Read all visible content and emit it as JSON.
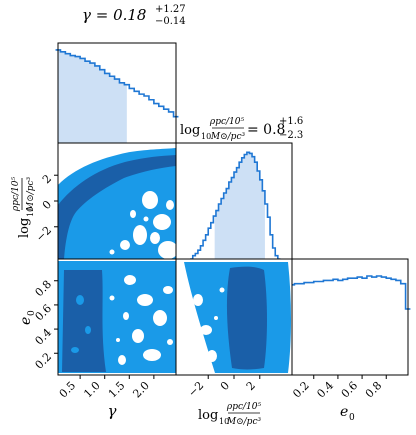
{
  "chart_data": {
    "type": "corner",
    "parameters": [
      {
        "symbol": "γ",
        "title_prefix": "γ = ",
        "value": "0.18",
        "plus": "+1.27",
        "minus": "−0.14",
        "range": [
          0.05,
          2.45
        ],
        "ticks": [
          "0.5",
          "1.0",
          "1.5",
          "2.0"
        ],
        "tick_values": [
          0.5,
          1.0,
          1.5,
          2.0
        ]
      },
      {
        "symbol": "log₁₀ (ρpc/10⁵ / M⊙/pc³)",
        "title_prefix": "log₁₀ (ρpc/10⁵ / M⊙/pc³) = ",
        "value": "0.8",
        "plus": "+1.6",
        "minus": "−2.3",
        "range": [
          -4.5,
          4.5
        ],
        "ticks": [
          "−2",
          "0",
          "2"
        ],
        "tick_values": [
          -2,
          0,
          2
        ]
      },
      {
        "symbol": "e₀",
        "range": [
          0.02,
          0.98
        ],
        "ticks": [
          "0.2",
          "0.4",
          "0.6",
          "0.8"
        ],
        "tick_values": [
          0.2,
          0.4,
          0.6,
          0.8
        ]
      }
    ],
    "axis_labels": {
      "gamma": "γ",
      "log_prefix": "log",
      "log_base": "10",
      "frac_num": "ρpc/10⁵",
      "frac_den": "M⊙/pc³",
      "e0": "e",
      "e0_sub": "0"
    },
    "titles": {
      "gamma": {
        "lhs": "γ = 0.18",
        "sup": "+1.27",
        "sub": "−0.14"
      },
      "rho": {
        "lhs": "= 0.8",
        "sup": "+1.6",
        "sub": "−2.3"
      }
    },
    "marginals": {
      "gamma": {
        "x": [
          0.05,
          0.15,
          0.25,
          0.35,
          0.45,
          0.55,
          0.65,
          0.75,
          0.85,
          0.95,
          1.05,
          1.15,
          1.25,
          1.35,
          1.45,
          1.55,
          1.65,
          1.75,
          1.85,
          1.95,
          2.05,
          2.15,
          2.25,
          2.35,
          2.45
        ],
        "density": [
          0.99,
          0.97,
          0.95,
          0.93,
          0.92,
          0.9,
          0.87,
          0.85,
          0.82,
          0.78,
          0.74,
          0.71,
          0.68,
          0.64,
          0.62,
          0.58,
          0.55,
          0.52,
          0.5,
          0.46,
          0.42,
          0.39,
          0.36,
          0.33,
          0.28
        ],
        "shade": [
          0.05,
          1.45
        ]
      },
      "rho": {
        "x": [
          -3.3,
          -3.1,
          -2.9,
          -2.7,
          -2.5,
          -2.3,
          -2.1,
          -1.9,
          -1.7,
          -1.5,
          -1.3,
          -1.1,
          -0.9,
          -0.7,
          -0.5,
          -0.3,
          -0.1,
          0.1,
          0.3,
          0.5,
          0.7,
          0.9,
          1.1,
          1.3,
          1.5,
          1.7,
          1.9,
          2.1,
          2.3,
          2.5,
          2.7,
          2.9,
          3.1,
          3.3,
          3.5
        ],
        "density": [
          0.0,
          0.03,
          0.05,
          0.08,
          0.12,
          0.17,
          0.22,
          0.28,
          0.33,
          0.39,
          0.44,
          0.5,
          0.55,
          0.6,
          0.64,
          0.7,
          0.74,
          0.79,
          0.83,
          0.88,
          0.92,
          0.95,
          0.97,
          0.96,
          0.93,
          0.88,
          0.8,
          0.72,
          0.62,
          0.5,
          0.38,
          0.22,
          0.1,
          0.03,
          0.0
        ],
        "shade": [
          -1.5,
          2.4
        ]
      },
      "e0": {
        "x": [
          0.02,
          0.06,
          0.1,
          0.14,
          0.18,
          0.22,
          0.26,
          0.3,
          0.34,
          0.38,
          0.42,
          0.46,
          0.5,
          0.54,
          0.58,
          0.62,
          0.66,
          0.7,
          0.74,
          0.78,
          0.82,
          0.86,
          0.9,
          0.94,
          0.98
        ],
        "density": [
          0.82,
          0.83,
          0.83,
          0.84,
          0.84,
          0.85,
          0.85,
          0.86,
          0.86,
          0.87,
          0.86,
          0.87,
          0.88,
          0.88,
          0.89,
          0.88,
          0.9,
          0.89,
          0.9,
          0.89,
          0.88,
          0.87,
          0.86,
          0.83,
          0.6
        ]
      }
    },
    "colors": {
      "line": "#1f77d4",
      "shade": "#cde0f5",
      "fill_outer": "#1a9ae8",
      "fill_inner": "#1a5fa8",
      "frame": "#000000"
    }
  }
}
